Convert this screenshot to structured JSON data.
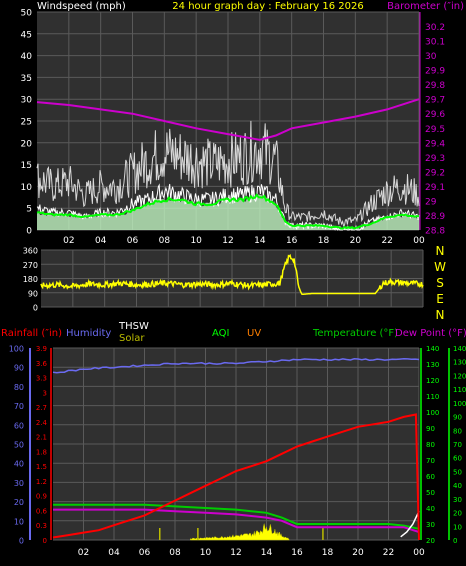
{
  "top": {
    "left_title": "Windspeed (mph)",
    "center_title": "24 hour graph day : February 16 2026",
    "right_title": "Barometer (″in)"
  },
  "compass": {
    "labels": [
      "N",
      "W",
      "S",
      "E",
      "N"
    ]
  },
  "bottom_legend": {
    "rainfall": "Rainfall (″in)",
    "humidity": "Humidity",
    "thsw": "THSW",
    "solar": "Solar",
    "aqi": "AQI",
    "uv": "UV",
    "temperature": "Temperature (°F)",
    "dewpoint": "Dew Point (°F)"
  },
  "colors": {
    "background": "#000000",
    "plot_bg": "#303030",
    "grid": "#5a5a5a",
    "wind": "#ffffff",
    "wind_avg": "#00ff00",
    "wind_light": "#c8ffc8",
    "barometer": "#cc00cc",
    "direction": "#ffff00",
    "rain": "#ff0000",
    "humidity": "#6a6af0",
    "thsw": "#ffffff",
    "solar": "#bcbc00",
    "aqi": "#00ff00",
    "uv": "#ff7f00",
    "temperature": "#00cc00",
    "dewpoint": "#cc00cc",
    "left_axis": "#6a6af0",
    "right_axis": "#00ff00"
  },
  "chart_data": [
    {
      "type": "line",
      "x_ticks": [
        "02",
        "04",
        "06",
        "08",
        "10",
        "12",
        "14",
        "16",
        "18",
        "20",
        "22",
        "00"
      ],
      "xlim": [
        0,
        24
      ],
      "left_axis": {
        "name": "Windspeed (mph)",
        "ylim": [
          0,
          50
        ],
        "ticks": [
          0,
          5,
          10,
          15,
          20,
          25,
          30,
          35,
          40,
          45,
          50
        ]
      },
      "right_axis": {
        "name": "Barometer (″in)",
        "ylim": [
          28.8,
          30.3
        ],
        "ticks": [
          "28.8",
          "28.9",
          "29",
          "29.1",
          "29.2",
          "29.3",
          "29.4",
          "29.5",
          "29.6",
          "29.7",
          "29.8",
          "29.9",
          "30",
          "30.1",
          "30.2"
        ]
      },
      "series": [
        {
          "name": "Barometer",
          "axis": "right",
          "x": [
            0,
            2,
            4,
            6,
            8,
            10,
            12,
            13,
            14,
            15,
            16,
            18,
            20,
            22,
            24
          ],
          "y": [
            29.68,
            29.66,
            29.63,
            29.6,
            29.55,
            29.5,
            29.46,
            29.44,
            29.42,
            29.45,
            29.5,
            29.54,
            29.58,
            29.63,
            29.7
          ]
        },
        {
          "name": "Gust",
          "axis": "left",
          "x": [
            0,
            1,
            2,
            3,
            4,
            5,
            6,
            7,
            8,
            9,
            10,
            11,
            12,
            13,
            14,
            15,
            15.6,
            16,
            17,
            18,
            19,
            20,
            21,
            22,
            23,
            24
          ],
          "y": [
            12,
            10,
            11,
            8,
            10,
            10,
            13,
            16,
            18,
            17,
            16,
            15,
            16,
            17,
            19,
            16,
            5,
            3,
            3,
            4,
            2,
            2,
            6,
            9,
            10,
            8
          ]
        },
        {
          "name": "Wind",
          "axis": "left",
          "x": [
            0,
            1,
            2,
            3,
            4,
            5,
            6,
            7,
            8,
            9,
            10,
            11,
            12,
            13,
            14,
            15,
            15.6,
            16,
            17,
            18,
            19,
            20,
            21,
            22,
            23,
            24
          ],
          "y": [
            5,
            4,
            4,
            3,
            4,
            4,
            6,
            7,
            9,
            8,
            7,
            7,
            8,
            8,
            9,
            7,
            2,
            1,
            1,
            1,
            0,
            0,
            2,
            3,
            4,
            3
          ]
        },
        {
          "name": "Average",
          "axis": "left",
          "x": [
            0,
            1,
            2,
            3,
            4,
            5,
            6,
            7,
            8,
            9,
            10,
            11,
            12,
            13,
            14,
            15,
            15.6,
            16,
            17,
            18,
            19,
            20,
            21,
            22,
            23,
            24
          ],
          "y": [
            4,
            3.5,
            3.5,
            3,
            3.5,
            3.5,
            4.5,
            6,
            7,
            7,
            6,
            6,
            7,
            7,
            8,
            6,
            2,
            1,
            1,
            1,
            0.5,
            0.5,
            1.5,
            3,
            3.5,
            3
          ]
        }
      ]
    },
    {
      "type": "line",
      "x_ticks": [
        "02",
        "04",
        "06",
        "08",
        "10",
        "12",
        "14",
        "16",
        "18",
        "20",
        "22",
        "00"
      ],
      "xlim": [
        0,
        24
      ],
      "ylim": [
        0,
        360
      ],
      "y_ticks": [
        0,
        90,
        180,
        270,
        360
      ],
      "series": [
        {
          "name": "Wind direction",
          "x": [
            0,
            1,
            2,
            3,
            4,
            5,
            6,
            7,
            8,
            9,
            10,
            11,
            12,
            13,
            14,
            15,
            15.3,
            15.6,
            15.9,
            16.2,
            16.4,
            17,
            18,
            19,
            20,
            21,
            21.5,
            22,
            23,
            24
          ],
          "y": [
            135,
            140,
            130,
            145,
            140,
            150,
            140,
            145,
            150,
            140,
            145,
            140,
            150,
            135,
            140,
            150,
            250,
            320,
            300,
            120,
            80,
            85,
            85,
            85,
            85,
            85,
            150,
            160,
            150,
            145
          ]
        }
      ]
    },
    {
      "type": "line",
      "x_ticks": [
        "02",
        "04",
        "06",
        "08",
        "10",
        "12",
        "14",
        "16",
        "18",
        "20",
        "22",
        "00"
      ],
      "xlim": [
        0,
        24
      ],
      "left_axis_humidity": {
        "ylim": [
          0,
          100
        ],
        "ticks": [
          0,
          10,
          20,
          30,
          40,
          50,
          60,
          70,
          80,
          90,
          100
        ]
      },
      "left_axis_rain": {
        "ylim": [
          0,
          3.9
        ],
        "ticks": [
          "0",
          "0.3",
          "0.6",
          "0.9",
          "1.2",
          "1.5",
          "1.8",
          "2.1",
          "2.4",
          "2.7",
          "3",
          "3.3",
          "3.6",
          "3.9"
        ]
      },
      "right_axis_outer": {
        "ylim": [
          0,
          140
        ],
        "ticks": [
          0,
          10,
          20,
          30,
          40,
          50,
          60,
          70,
          80,
          90,
          100,
          110,
          120,
          130,
          140
        ]
      },
      "right_axis_inner": {
        "ylim": [
          20,
          140
        ],
        "ticks": [
          20,
          30,
          40,
          50,
          60,
          70,
          80,
          90,
          100,
          110,
          120,
          130,
          140
        ]
      },
      "series": [
        {
          "name": "Humidity",
          "x": [
            0,
            2,
            4,
            6,
            8,
            10,
            12,
            14,
            16,
            18,
            20,
            22,
            24
          ],
          "y": [
            87,
            89,
            90,
            91,
            92,
            92,
            92,
            93,
            94,
            94,
            94,
            94,
            94
          ]
        },
        {
          "name": "Rainfall",
          "x": [
            0,
            1,
            2,
            3,
            4,
            5,
            6,
            7,
            8,
            9,
            10,
            11,
            12,
            13,
            14,
            15,
            16,
            17,
            18,
            19,
            20,
            21,
            22,
            23,
            23.8,
            24
          ],
          "y": [
            0.05,
            0.1,
            0.15,
            0.2,
            0.3,
            0.4,
            0.5,
            0.65,
            0.8,
            0.95,
            1.1,
            1.25,
            1.4,
            1.5,
            1.6,
            1.75,
            1.9,
            2.0,
            2.1,
            2.2,
            2.3,
            2.35,
            2.4,
            2.5,
            2.55,
            0
          ]
        },
        {
          "name": "Temperature",
          "x": [
            0,
            2,
            4,
            6,
            8,
            10,
            12,
            14,
            15,
            16,
            18,
            20,
            22,
            23,
            24
          ],
          "y": [
            42,
            42,
            42,
            42,
            41,
            40,
            39,
            37,
            34,
            30,
            30,
            30,
            30,
            29,
            27
          ]
        },
        {
          "name": "Dew Point",
          "x": [
            0,
            2,
            4,
            6,
            8,
            10,
            12,
            14,
            15,
            16,
            18,
            20,
            22,
            23,
            24
          ],
          "y": [
            39,
            39,
            39,
            39,
            38,
            37,
            36,
            34,
            32,
            28,
            28,
            28,
            28,
            28,
            25
          ]
        },
        {
          "name": "THSW",
          "x": [
            22.8,
            23.2,
            23.6,
            24
          ],
          "y": [
            22,
            25,
            30,
            38
          ]
        },
        {
          "name": "Solar",
          "x": [
            9,
            10,
            11,
            12,
            13,
            13.5,
            14,
            14.5,
            15,
            15.5
          ],
          "y": [
            1,
            1.5,
            2,
            3,
            4,
            6,
            10,
            7,
            3,
            1
          ]
        }
      ]
    }
  ]
}
